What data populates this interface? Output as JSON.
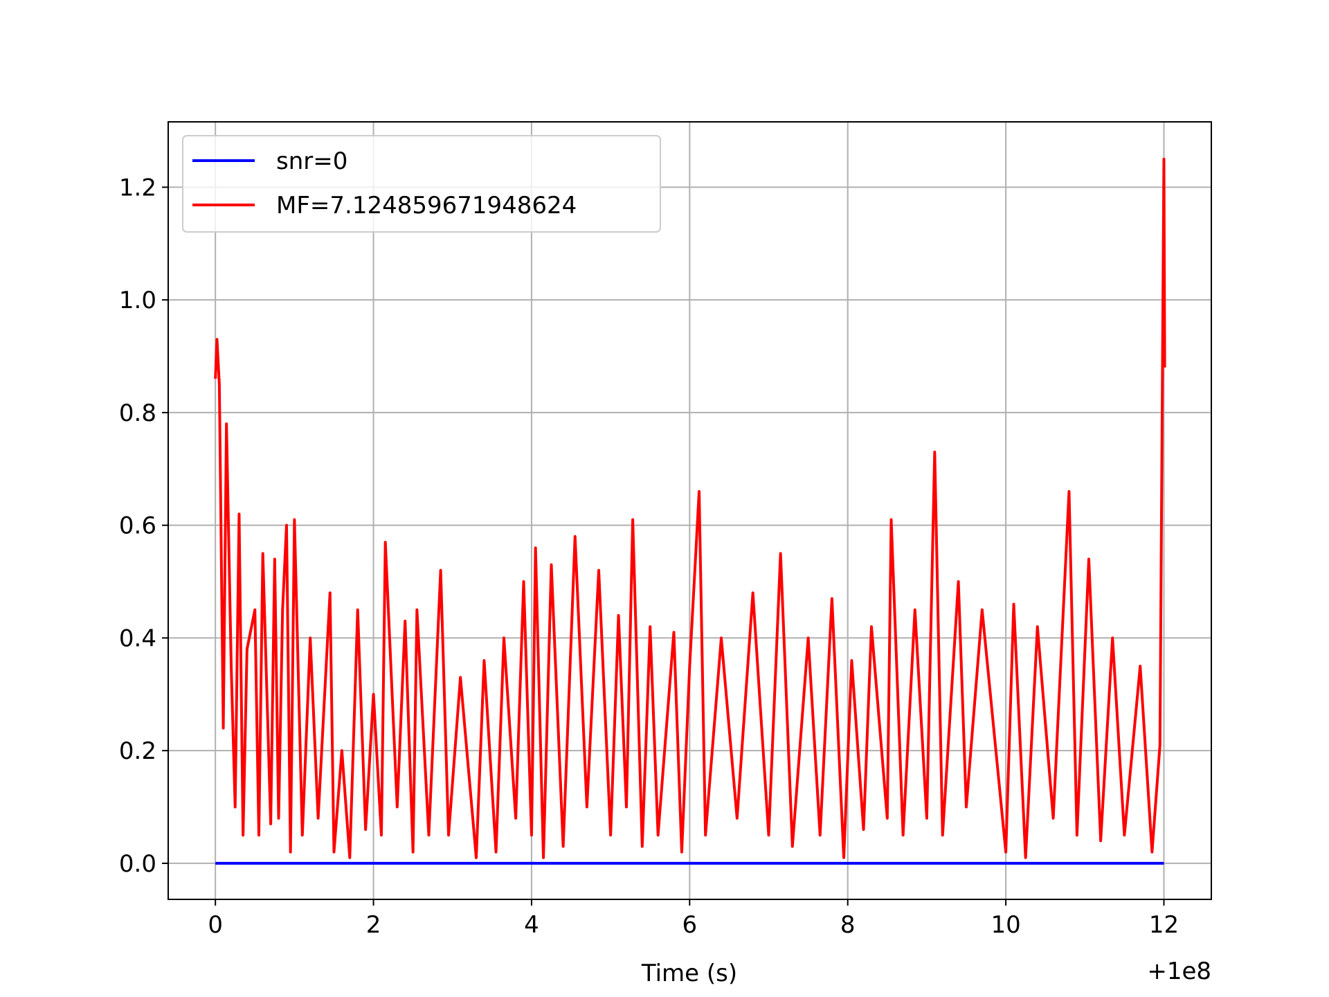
{
  "chart_data": {
    "type": "line",
    "x_label": "Time (s)",
    "x_offset_label": "+1e8",
    "xlim": [
      -0.597,
      12.6
    ],
    "ylim": [
      -0.064,
      1.316
    ],
    "xticks": [
      0,
      2,
      4,
      6,
      8,
      10,
      12
    ],
    "yticks": [
      {
        "value": 0,
        "label": "0.0"
      },
      0.2,
      0.4,
      0.6,
      0.8,
      {
        "value": 1,
        "label": "1.0"
      },
      1.2
    ],
    "grid": true,
    "legend": "upper left",
    "series": [
      {
        "name": "snr=0",
        "color": "#0000ff",
        "x": [
          0,
          12
        ],
        "values": [
          0,
          0
        ]
      },
      {
        "name": "MF=7.124859671948624",
        "color": "#ff0000",
        "x": [
          0,
          0.02,
          0.05,
          0.1,
          0.14,
          0.2,
          0.25,
          0.3,
          0.35,
          0.4,
          0.5,
          0.55,
          0.6,
          0.7,
          0.75,
          0.8,
          0.85,
          0.9,
          0.95,
          1.0,
          1.1,
          1.2,
          1.3,
          1.45,
          1.5,
          1.6,
          1.7,
          1.8,
          1.9,
          2.0,
          2.1,
          2.15,
          2.3,
          2.4,
          2.5,
          2.55,
          2.7,
          2.85,
          2.95,
          3.1,
          3.3,
          3.4,
          3.55,
          3.65,
          3.8,
          3.9,
          4.0,
          4.05,
          4.15,
          4.25,
          4.4,
          4.55,
          4.7,
          4.85,
          5.0,
          5.1,
          5.2,
          5.28,
          5.4,
          5.5,
          5.6,
          5.8,
          5.9,
          6.0,
          6.12,
          6.2,
          6.4,
          6.6,
          6.8,
          7.0,
          7.15,
          7.3,
          7.5,
          7.65,
          7.8,
          7.95,
          8.05,
          8.2,
          8.3,
          8.5,
          8.55,
          8.7,
          8.85,
          9.0,
          9.1,
          9.2,
          9.4,
          9.5,
          9.7,
          10.0,
          10.1,
          10.25,
          10.4,
          10.6,
          10.8,
          10.9,
          11.05,
          11.2,
          11.35,
          11.5,
          11.7,
          11.85,
          11.95,
          12.0,
          12.01
        ],
        "values": [
          0.86,
          0.93,
          0.85,
          0.24,
          0.78,
          0.35,
          0.1,
          0.62,
          0.05,
          0.38,
          0.45,
          0.05,
          0.55,
          0.07,
          0.54,
          0.08,
          0.45,
          0.6,
          0.02,
          0.61,
          0.05,
          0.4,
          0.08,
          0.48,
          0.02,
          0.2,
          0.01,
          0.45,
          0.06,
          0.3,
          0.05,
          0.57,
          0.1,
          0.43,
          0.02,
          0.45,
          0.05,
          0.52,
          0.05,
          0.33,
          0.01,
          0.36,
          0.02,
          0.4,
          0.08,
          0.5,
          0.05,
          0.56,
          0.01,
          0.53,
          0.03,
          0.58,
          0.1,
          0.52,
          0.05,
          0.44,
          0.1,
          0.61,
          0.03,
          0.42,
          0.05,
          0.41,
          0.02,
          0.35,
          0.66,
          0.05,
          0.4,
          0.08,
          0.48,
          0.05,
          0.55,
          0.03,
          0.4,
          0.05,
          0.47,
          0.01,
          0.36,
          0.06,
          0.42,
          0.08,
          0.61,
          0.05,
          0.45,
          0.08,
          0.73,
          0.05,
          0.5,
          0.1,
          0.45,
          0.02,
          0.46,
          0.01,
          0.42,
          0.08,
          0.66,
          0.05,
          0.54,
          0.04,
          0.4,
          0.05,
          0.35,
          0.02,
          0.21,
          1.25,
          0.88
        ]
      }
    ]
  }
}
